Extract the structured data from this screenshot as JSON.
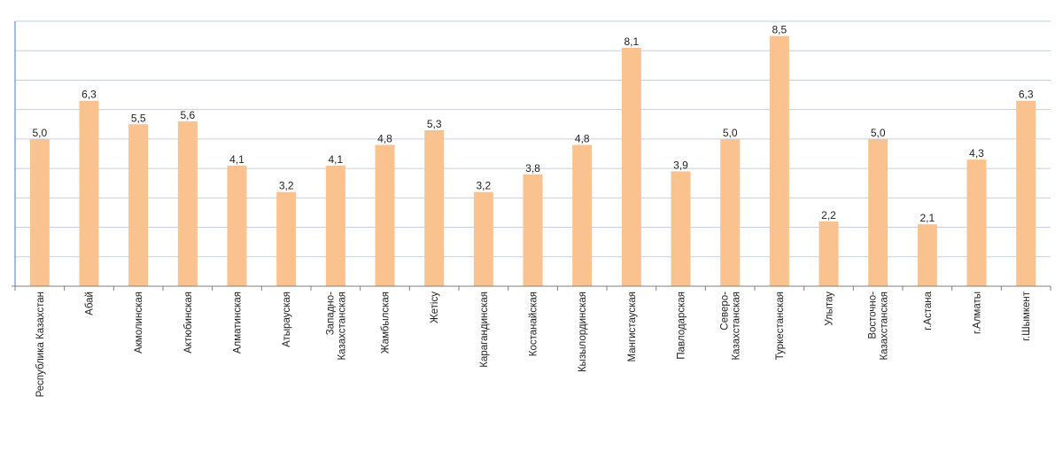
{
  "chart_data": {
    "type": "bar",
    "categories": [
      [
        "Республика Казахстан"
      ],
      [
        "Абай"
      ],
      [
        "Акмолинская"
      ],
      [
        "Актюбинская"
      ],
      [
        "Алматинская"
      ],
      [
        "Атырауская"
      ],
      [
        "Западно-",
        "Казахстанская"
      ],
      [
        "Жамбылская"
      ],
      [
        "Жетісу"
      ],
      [
        "Карагандинская"
      ],
      [
        "Костанайская"
      ],
      [
        "Кызылординская"
      ],
      [
        "Мангистауская"
      ],
      [
        "Павлодарская"
      ],
      [
        "Северо-",
        "Казахстанская"
      ],
      [
        "Туркестанская"
      ],
      [
        "Улытау"
      ],
      [
        "Восточно-",
        "Казахстанская"
      ],
      [
        "г.Астана"
      ],
      [
        "г.Алматы"
      ],
      [
        "г.Шымкент"
      ]
    ],
    "values": [
      5.0,
      6.3,
      5.5,
      5.6,
      4.1,
      3.2,
      4.1,
      4.8,
      5.3,
      3.2,
      3.8,
      4.8,
      8.1,
      3.9,
      5.0,
      8.5,
      2.2,
      5.0,
      2.1,
      4.3,
      6.3
    ],
    "value_labels": [
      "5,0",
      "6,3",
      "5,5",
      "5,6",
      "4,1",
      "3,2",
      "4,1",
      "4,8",
      "5,3",
      "3,2",
      "3,8",
      "4,8",
      "8,1",
      "3,9",
      "5,0",
      "8,5",
      "2,2",
      "5,0",
      "2,1",
      "4,3",
      "6,3"
    ],
    "ylim": [
      0,
      9
    ],
    "grid": true,
    "legend": false,
    "title": "",
    "xlabel": "",
    "ylabel": "",
    "colors": {
      "bar": "#F9C28E",
      "grid": "#C6D0E2",
      "axis": "#4A73C9"
    }
  }
}
